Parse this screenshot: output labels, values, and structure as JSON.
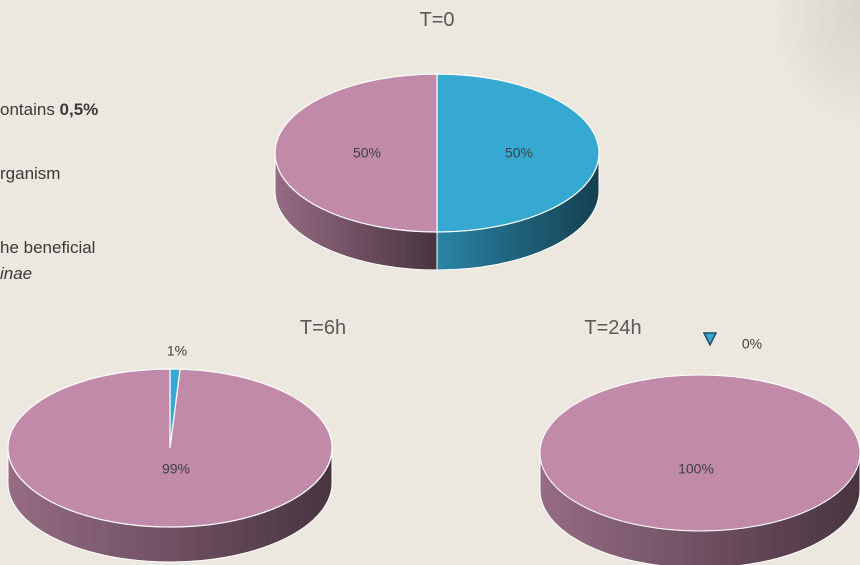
{
  "left_text": {
    "line1_prefix": "ontains ",
    "line1_bold": "0,5%",
    "line2": "rganism",
    "line3": "he beneficial",
    "line4": "inae"
  },
  "colors": {
    "pink": "#c08aa8",
    "blue": "#36a9d3"
  },
  "chart_data": [
    {
      "type": "pie",
      "title": "T=0",
      "slices": [
        {
          "label": "50%",
          "value": 50,
          "color": "#36a9d3"
        },
        {
          "label": "50%",
          "value": 50,
          "color": "#c08aa8"
        }
      ]
    },
    {
      "type": "pie",
      "title": "T=6h",
      "slices": [
        {
          "label": "1%",
          "value": 1,
          "color": "#36a9d3"
        },
        {
          "label": "99%",
          "value": 99,
          "color": "#c08aa8"
        }
      ]
    },
    {
      "type": "pie",
      "title": "T=24h",
      "slices": [
        {
          "label": "0%",
          "value": 0,
          "color": "#36a9d3"
        },
        {
          "label": "100%",
          "value": 100,
          "color": "#c08aa8"
        }
      ]
    }
  ]
}
